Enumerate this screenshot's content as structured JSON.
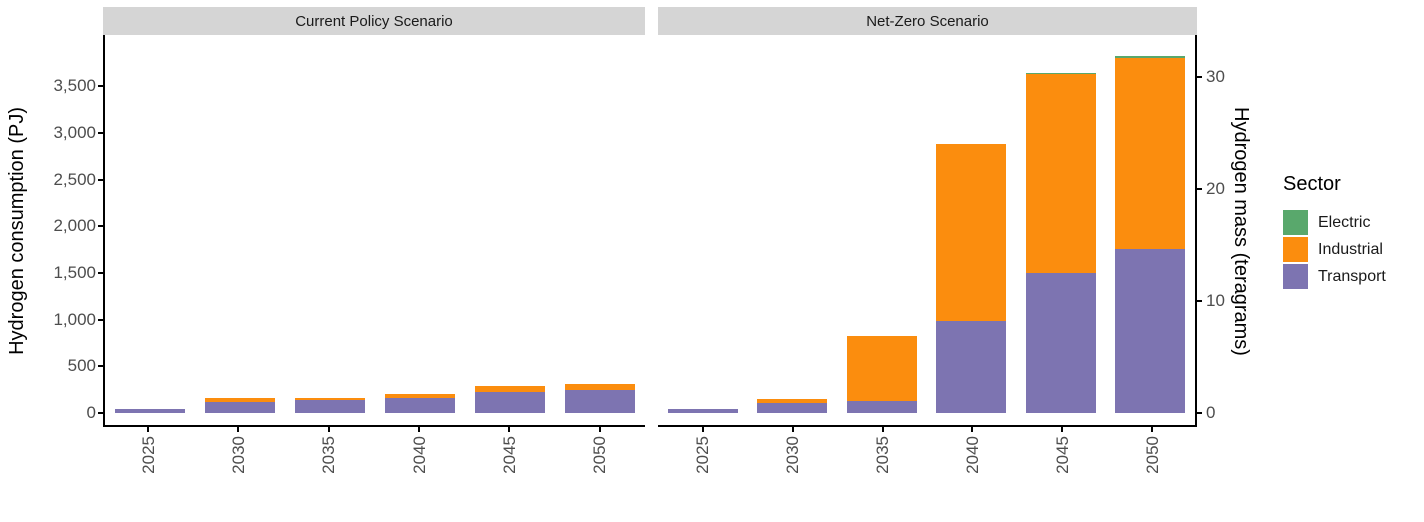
{
  "figure": {
    "left_axis_title": "Hydrogen consumption (PJ)",
    "right_axis_title": "Hydrogen mass (teragrams)"
  },
  "chart_data": {
    "type": "bar",
    "stacked": true,
    "grid": "off",
    "title": "",
    "xlabel": "",
    "ylabel_left": "Hydrogen consumption (PJ)",
    "ylabel_right": "Hydrogen mass (teragrams)",
    "ylim_left_PJ": [
      0,
      4000
    ],
    "ylim_right_Tg": [
      0,
      33
    ],
    "pj_per_teragram": 120,
    "categories": [
      "2025",
      "2030",
      "2035",
      "2040",
      "2045",
      "2050"
    ],
    "facets": [
      {
        "label": "Current Policy Scenario",
        "series": [
          {
            "name": "Transport",
            "values": [
              40,
              120,
              135,
              165,
              225,
              250
            ]
          },
          {
            "name": "Industrial",
            "values": [
              0,
              40,
              30,
              35,
              60,
              65
            ]
          },
          {
            "name": "Electric",
            "values": [
              0,
              0,
              0,
              0,
              0,
              0
            ]
          }
        ],
        "totals_PJ": [
          40,
          160,
          165,
          200,
          285,
          315
        ]
      },
      {
        "label": "Net-Zero Scenario",
        "series": [
          {
            "name": "Transport",
            "values": [
              40,
              110,
              125,
              985,
              1500,
              1760
            ]
          },
          {
            "name": "Industrial",
            "values": [
              0,
              45,
              695,
              1900,
              2130,
              2040
            ]
          },
          {
            "name": "Electric",
            "values": [
              0,
              0,
              0,
              0,
              10,
              25
            ]
          }
        ],
        "totals_PJ": [
          40,
          155,
          820,
          2885,
          3640,
          3825
        ]
      }
    ],
    "colors": {
      "Electric": "#59a86c",
      "Industrial": "#fb8d0e",
      "Transport": "#7d74b1"
    },
    "y_left_ticks": [
      {
        "v": 0,
        "label": "0"
      },
      {
        "v": 500,
        "label": "500"
      },
      {
        "v": 1000,
        "label": "1,000"
      },
      {
        "v": 1500,
        "label": "1,500"
      },
      {
        "v": 2000,
        "label": "2,000"
      },
      {
        "v": 2500,
        "label": "2,500"
      },
      {
        "v": 3000,
        "label": "3,000"
      },
      {
        "v": 3500,
        "label": "3,500"
      }
    ],
    "y_right_ticks": [
      {
        "v": 0,
        "label": "0"
      },
      {
        "v": 10,
        "label": "10"
      },
      {
        "v": 20,
        "label": "20"
      },
      {
        "v": 30,
        "label": "30"
      }
    ],
    "legend": {
      "title": "Sector",
      "position": "right",
      "items": [
        {
          "label": "Electric"
        },
        {
          "label": "Industrial"
        },
        {
          "label": "Transport"
        }
      ]
    }
  }
}
